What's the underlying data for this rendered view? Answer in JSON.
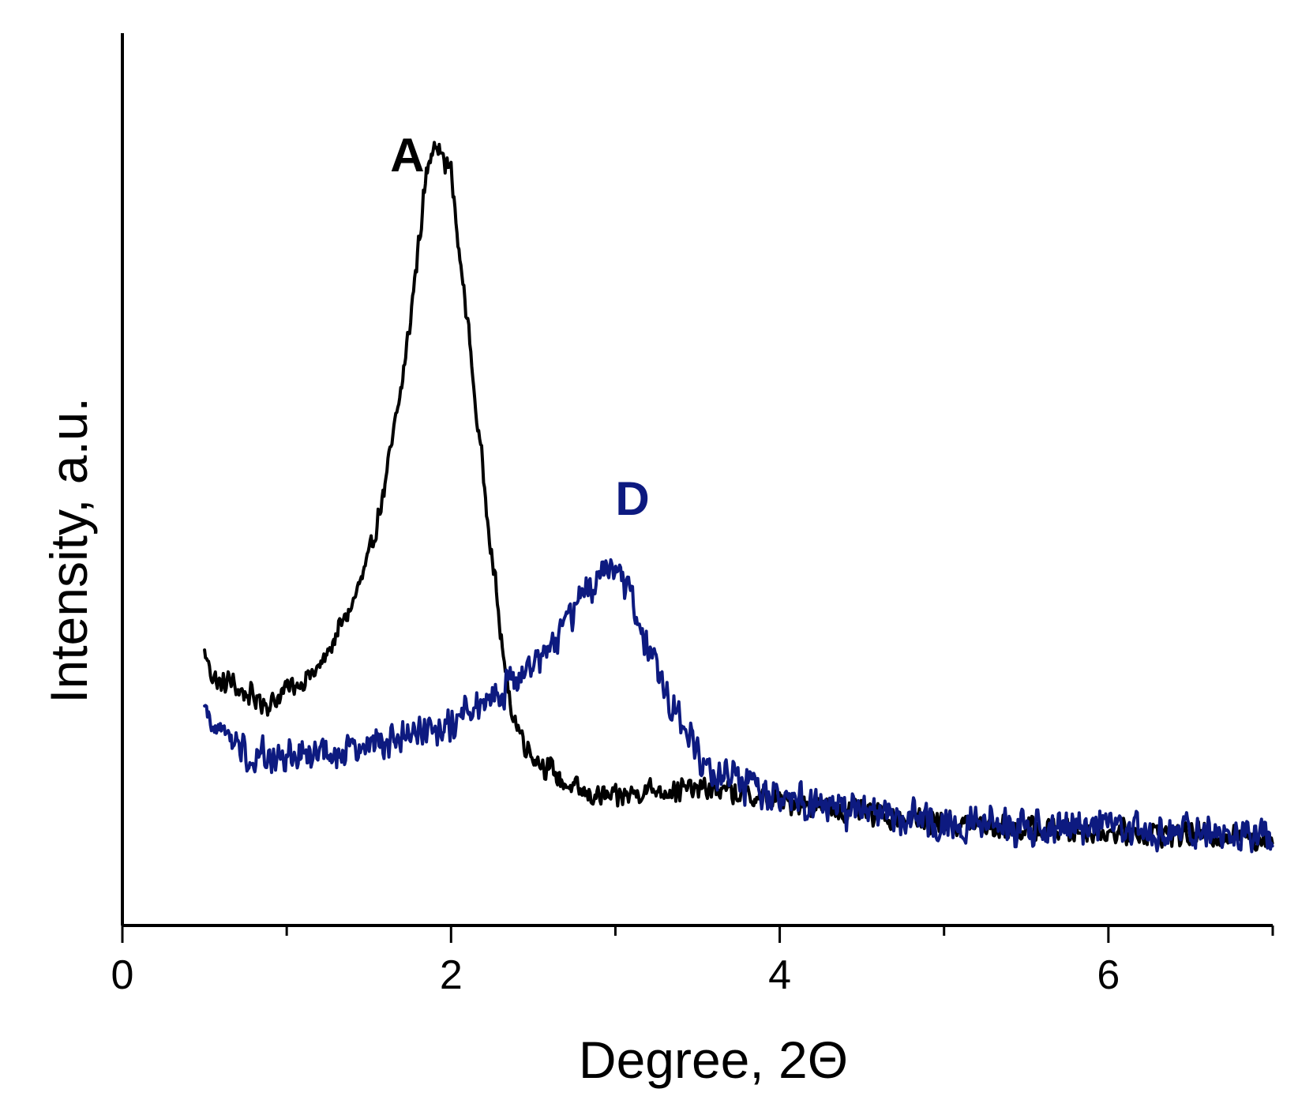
{
  "chart_data": {
    "type": "line",
    "xlabel": "Degree, 2Θ",
    "ylabel": "Intensity, a.u.",
    "xlim": [
      0,
      7
    ],
    "ylim": [
      0,
      100
    ],
    "x_ticks_major": [
      0,
      2,
      4,
      6
    ],
    "x_tick_labels": [
      "0",
      "2",
      "4",
      "6"
    ],
    "x_ticks_minor": [
      1,
      3,
      5
    ],
    "y_tick_labels": [],
    "grid": false,
    "legend": "none",
    "series": [
      {
        "name": "A",
        "color": "#000000",
        "noise": 1.6,
        "x": [
          0.5,
          0.55,
          0.6,
          0.65,
          0.7,
          0.8,
          0.9,
          1.0,
          1.1,
          1.2,
          1.3,
          1.4,
          1.5,
          1.6,
          1.7,
          1.75,
          1.8,
          1.85,
          1.9,
          1.95,
          2.0,
          2.05,
          2.1,
          2.15,
          2.2,
          2.25,
          2.3,
          2.35,
          2.4,
          2.45,
          2.5,
          2.6,
          2.7,
          2.8,
          2.9,
          3.0,
          3.1,
          3.2,
          3.4,
          3.6,
          3.8,
          4.0,
          4.2,
          4.5,
          5.0,
          5.5,
          6.0,
          6.5,
          7.0
        ],
        "y": [
          30.5,
          28.0,
          26.8,
          27.5,
          26.5,
          25.5,
          24.8,
          26.5,
          27.5,
          28.8,
          32.5,
          36.0,
          41.0,
          49.5,
          60.5,
          67.5,
          76.0,
          84.0,
          88.5,
          86.0,
          84.5,
          75.0,
          68.0,
          58.0,
          50.0,
          41.5,
          33.0,
          25.5,
          22.5,
          20.5,
          19.0,
          17.5,
          15.8,
          14.8,
          14.5,
          14.2,
          14.8,
          15.3,
          15.2,
          15.3,
          14.5,
          14.0,
          13.5,
          12.5,
          11.5,
          10.8,
          10.5,
          10.2,
          9.8
        ]
      },
      {
        "name": "D",
        "color": "#0d1a80",
        "noise": 2.4,
        "x": [
          0.5,
          0.6,
          0.7,
          0.8,
          1.0,
          1.2,
          1.4,
          1.6,
          1.8,
          2.0,
          2.1,
          2.2,
          2.3,
          2.4,
          2.5,
          2.6,
          2.7,
          2.8,
          2.9,
          3.0,
          3.05,
          3.1,
          3.2,
          3.3,
          3.4,
          3.5,
          3.6,
          3.7,
          3.8,
          4.0,
          4.2,
          4.5,
          5.0,
          5.5,
          6.0,
          6.5,
          7.0
        ],
        "y": [
          24.0,
          21.8,
          20.0,
          19.2,
          18.8,
          18.8,
          19.6,
          20.5,
          21.6,
          22.8,
          23.8,
          24.8,
          26.0,
          27.5,
          29.5,
          31.5,
          34.0,
          37.0,
          39.0,
          40.5,
          39.0,
          36.0,
          31.0,
          26.5,
          22.5,
          19.0,
          17.0,
          16.3,
          15.6,
          14.5,
          13.6,
          12.6,
          11.6,
          11.0,
          10.7,
          10.3,
          10.0
        ]
      }
    ],
    "annotations": [
      {
        "text": "A",
        "x": 1.63,
        "y": 84.5,
        "color": "#000000"
      },
      {
        "text": "D",
        "x": 3.0,
        "y": 46.0,
        "color": "#0d1a80"
      }
    ]
  }
}
